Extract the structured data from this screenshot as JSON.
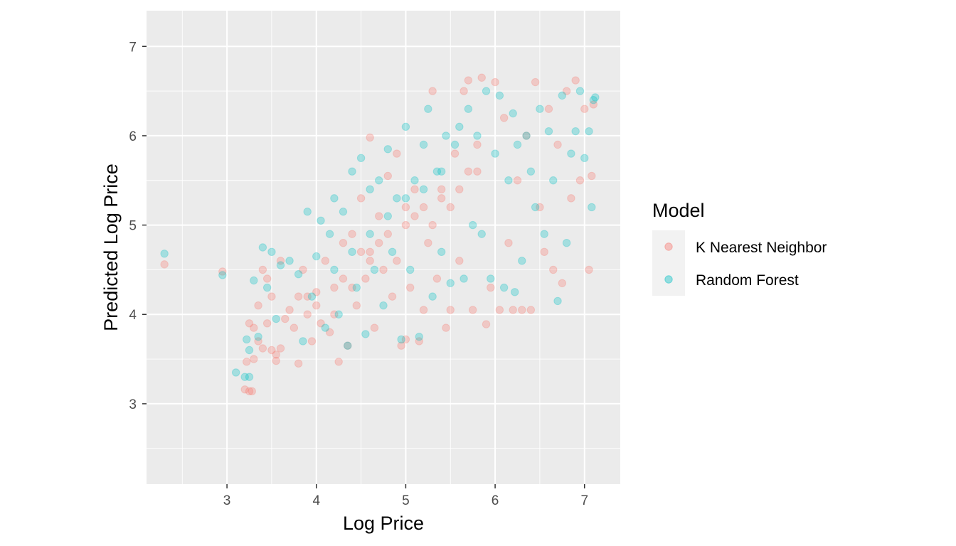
{
  "chart_data": {
    "type": "scatter",
    "title": "",
    "xlabel": "Log Price",
    "ylabel": "Predicted Log Price",
    "xlim": [
      2.1,
      7.4
    ],
    "ylim": [
      2.1,
      7.4
    ],
    "x_ticks": [
      3,
      4,
      5,
      6,
      7
    ],
    "y_ticks": [
      3,
      4,
      5,
      6,
      7
    ],
    "grid": true,
    "legend": {
      "title": "Model",
      "position": "right"
    },
    "series": [
      {
        "name": "K Nearest Neighbor",
        "color": "#F8766D",
        "opacity": 0.3,
        "points": [
          [
            2.3,
            4.56
          ],
          [
            2.95,
            4.48
          ],
          [
            3.2,
            3.16
          ],
          [
            3.25,
            3.14
          ],
          [
            3.28,
            3.14
          ],
          [
            3.22,
            3.47
          ],
          [
            3.3,
            3.5
          ],
          [
            3.25,
            3.9
          ],
          [
            3.3,
            3.85
          ],
          [
            3.35,
            4.1
          ],
          [
            3.35,
            3.7
          ],
          [
            3.4,
            3.62
          ],
          [
            3.4,
            4.5
          ],
          [
            3.45,
            4.4
          ],
          [
            3.45,
            3.9
          ],
          [
            3.5,
            3.6
          ],
          [
            3.5,
            4.2
          ],
          [
            3.55,
            3.55
          ],
          [
            3.55,
            3.48
          ],
          [
            3.6,
            3.62
          ],
          [
            3.6,
            4.6
          ],
          [
            3.65,
            3.95
          ],
          [
            3.7,
            4.05
          ],
          [
            3.75,
            3.85
          ],
          [
            3.8,
            4.2
          ],
          [
            3.8,
            3.45
          ],
          [
            3.85,
            4.5
          ],
          [
            3.9,
            4.0
          ],
          [
            3.95,
            3.7
          ],
          [
            4.0,
            4.25
          ],
          [
            4.05,
            3.9
          ],
          [
            4.1,
            4.6
          ],
          [
            4.15,
            3.8
          ],
          [
            4.2,
            4.3
          ],
          [
            4.25,
            3.47
          ],
          [
            4.3,
            4.8
          ],
          [
            4.35,
            3.65
          ],
          [
            4.4,
            4.9
          ],
          [
            4.45,
            4.1
          ],
          [
            4.5,
            5.3
          ],
          [
            4.55,
            4.4
          ],
          [
            4.6,
            5.98
          ],
          [
            4.6,
            4.7
          ],
          [
            4.65,
            3.85
          ],
          [
            4.7,
            5.1
          ],
          [
            4.75,
            4.5
          ],
          [
            4.8,
            5.55
          ],
          [
            4.85,
            4.2
          ],
          [
            4.9,
            5.8
          ],
          [
            4.95,
            3.65
          ],
          [
            5.0,
            5.2
          ],
          [
            5.0,
            3.72
          ],
          [
            5.05,
            4.3
          ],
          [
            5.1,
            5.4
          ],
          [
            5.15,
            3.7
          ],
          [
            5.2,
            4.05
          ],
          [
            5.25,
            4.8
          ],
          [
            5.3,
            6.5
          ],
          [
            5.35,
            4.4
          ],
          [
            5.4,
            5.3
          ],
          [
            5.45,
            3.85
          ],
          [
            5.5,
            4.05
          ],
          [
            5.55,
            5.8
          ],
          [
            5.6,
            4.6
          ],
          [
            5.65,
            6.5
          ],
          [
            5.7,
            6.62
          ],
          [
            5.75,
            4.05
          ],
          [
            5.8,
            5.6
          ],
          [
            5.85,
            6.65
          ],
          [
            5.9,
            3.89
          ],
          [
            5.95,
            4.3
          ],
          [
            6.0,
            6.6
          ],
          [
            6.05,
            4.05
          ],
          [
            6.1,
            6.2
          ],
          [
            6.15,
            4.8
          ],
          [
            6.2,
            4.05
          ],
          [
            6.25,
            5.5
          ],
          [
            6.3,
            4.05
          ],
          [
            6.35,
            6.0
          ],
          [
            6.4,
            4.05
          ],
          [
            6.45,
            6.6
          ],
          [
            6.5,
            5.2
          ],
          [
            6.55,
            4.7
          ],
          [
            6.6,
            6.3
          ],
          [
            6.65,
            4.5
          ],
          [
            6.7,
            5.9
          ],
          [
            6.75,
            4.35
          ],
          [
            6.8,
            6.5
          ],
          [
            6.85,
            5.3
          ],
          [
            6.9,
            6.62
          ],
          [
            6.95,
            5.5
          ],
          [
            7.0,
            6.3
          ],
          [
            7.05,
            4.5
          ],
          [
            7.08,
            5.55
          ],
          [
            7.1,
            6.35
          ],
          [
            4.2,
            4.0
          ],
          [
            4.4,
            4.3
          ],
          [
            4.6,
            4.6
          ],
          [
            4.8,
            4.9
          ],
          [
            5.0,
            5.0
          ],
          [
            5.2,
            5.2
          ],
          [
            5.4,
            5.4
          ],
          [
            5.6,
            5.4
          ],
          [
            4.0,
            4.1
          ],
          [
            3.9,
            4.2
          ],
          [
            4.3,
            4.4
          ],
          [
            4.7,
            4.8
          ],
          [
            5.1,
            5.1
          ],
          [
            5.3,
            5.0
          ],
          [
            5.5,
            5.2
          ],
          [
            4.5,
            4.7
          ],
          [
            4.9,
            4.6
          ],
          [
            5.7,
            5.6
          ],
          [
            5.8,
            5.9
          ]
        ]
      },
      {
        "name": "Random Forest",
        "color": "#00BFC4",
        "opacity": 0.3,
        "points": [
          [
            2.3,
            4.68
          ],
          [
            2.95,
            4.44
          ],
          [
            3.1,
            3.35
          ],
          [
            3.2,
            3.3
          ],
          [
            3.25,
            3.3
          ],
          [
            3.22,
            3.72
          ],
          [
            3.25,
            3.6
          ],
          [
            3.3,
            4.38
          ],
          [
            3.35,
            3.75
          ],
          [
            3.4,
            4.75
          ],
          [
            3.45,
            4.3
          ],
          [
            3.5,
            4.7
          ],
          [
            3.55,
            3.95
          ],
          [
            3.6,
            4.55
          ],
          [
            3.7,
            4.6
          ],
          [
            3.8,
            4.45
          ],
          [
            3.85,
            3.7
          ],
          [
            3.9,
            5.15
          ],
          [
            3.95,
            4.2
          ],
          [
            4.0,
            4.65
          ],
          [
            4.05,
            5.05
          ],
          [
            4.1,
            3.85
          ],
          [
            4.15,
            4.9
          ],
          [
            4.2,
            5.3
          ],
          [
            4.25,
            4.0
          ],
          [
            4.3,
            5.15
          ],
          [
            4.35,
            3.65
          ],
          [
            4.4,
            5.6
          ],
          [
            4.45,
            4.3
          ],
          [
            4.5,
            5.75
          ],
          [
            4.55,
            3.78
          ],
          [
            4.6,
            5.4
          ],
          [
            4.65,
            4.5
          ],
          [
            4.7,
            5.5
          ],
          [
            4.75,
            4.1
          ],
          [
            4.8,
            5.85
          ],
          [
            4.85,
            4.7
          ],
          [
            4.9,
            5.3
          ],
          [
            4.95,
            3.72
          ],
          [
            5.0,
            6.1
          ],
          [
            5.05,
            4.5
          ],
          [
            5.1,
            5.5
          ],
          [
            5.15,
            3.75
          ],
          [
            5.2,
            5.9
          ],
          [
            5.25,
            6.3
          ],
          [
            5.3,
            4.2
          ],
          [
            5.35,
            5.6
          ],
          [
            5.4,
            4.7
          ],
          [
            5.45,
            6.0
          ],
          [
            5.5,
            4.35
          ],
          [
            5.55,
            5.9
          ],
          [
            5.6,
            6.1
          ],
          [
            5.65,
            4.4
          ],
          [
            5.7,
            6.3
          ],
          [
            5.75,
            5.0
          ],
          [
            5.8,
            6.0
          ],
          [
            5.85,
            4.9
          ],
          [
            5.9,
            6.5
          ],
          [
            5.95,
            4.4
          ],
          [
            6.0,
            5.8
          ],
          [
            6.05,
            6.45
          ],
          [
            6.1,
            4.3
          ],
          [
            6.15,
            5.5
          ],
          [
            6.2,
            6.25
          ],
          [
            6.22,
            4.25
          ],
          [
            6.25,
            5.9
          ],
          [
            6.3,
            4.6
          ],
          [
            6.35,
            6.0
          ],
          [
            6.4,
            5.6
          ],
          [
            6.45,
            5.2
          ],
          [
            6.5,
            6.3
          ],
          [
            6.55,
            4.9
          ],
          [
            6.6,
            6.05
          ],
          [
            6.65,
            5.5
          ],
          [
            6.7,
            4.15
          ],
          [
            6.75,
            6.45
          ],
          [
            6.8,
            4.8
          ],
          [
            6.85,
            5.8
          ],
          [
            6.9,
            6.05
          ],
          [
            6.95,
            6.5
          ],
          [
            7.0,
            5.75
          ],
          [
            7.05,
            6.05
          ],
          [
            7.08,
            5.2
          ],
          [
            7.1,
            6.4
          ],
          [
            7.12,
            6.43
          ],
          [
            4.6,
            4.9
          ],
          [
            4.8,
            5.1
          ],
          [
            5.0,
            5.3
          ],
          [
            4.4,
            4.7
          ],
          [
            4.2,
            4.5
          ],
          [
            5.2,
            5.4
          ],
          [
            5.4,
            5.6
          ]
        ]
      }
    ]
  }
}
